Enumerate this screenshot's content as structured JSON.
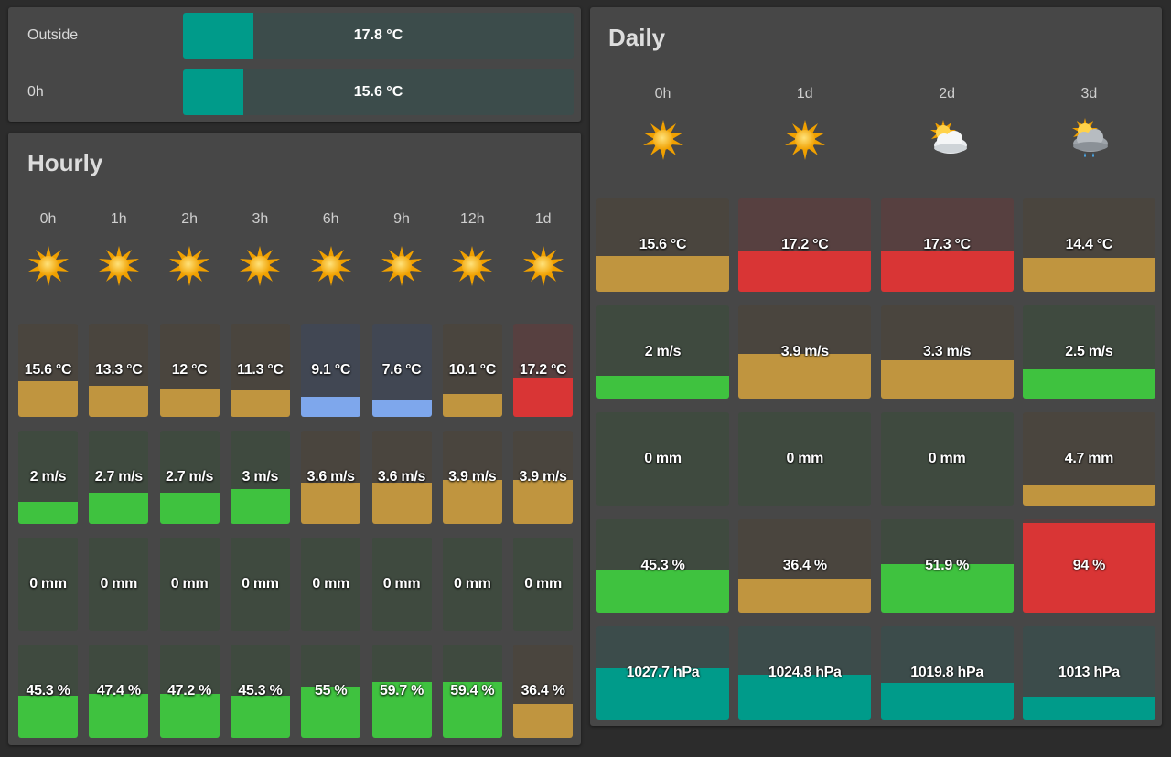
{
  "colors": {
    "teal": "#009b8a",
    "teal_bg": "#3c4c4b",
    "green": "#3fc23f",
    "green_bg": "#3f4a3f",
    "amber": "#c0953f",
    "amber_bg": "#4a453e",
    "red": "#d93535",
    "red_bg": "#574040",
    "blue": "#7ea7ec",
    "blue_bg": "#414753"
  },
  "gauges": [
    {
      "label": "Outside",
      "value": "17.8 °C",
      "fraction": 0.18,
      "color": "teal"
    },
    {
      "label": "0h",
      "value": "15.6 °C",
      "fraction": 0.155,
      "color": "teal"
    }
  ],
  "hourly": {
    "title": "Hourly",
    "columns": [
      {
        "label": "0h",
        "icon": "sun-icon"
      },
      {
        "label": "1h",
        "icon": "sun-icon"
      },
      {
        "label": "2h",
        "icon": "sun-icon"
      },
      {
        "label": "3h",
        "icon": "sun-icon"
      },
      {
        "label": "6h",
        "icon": "sun-icon"
      },
      {
        "label": "9h",
        "icon": "sun-icon"
      },
      {
        "label": "12h",
        "icon": "sun-icon"
      },
      {
        "label": "1d",
        "icon": "sun-icon"
      }
    ],
    "rows": [
      {
        "name": "temperature",
        "cells": [
          {
            "value": "15.6 °C",
            "fraction": 0.38,
            "color": "amber"
          },
          {
            "value": "13.3 °C",
            "fraction": 0.33,
            "color": "amber"
          },
          {
            "value": "12 °C",
            "fraction": 0.29,
            "color": "amber"
          },
          {
            "value": "11.3 °C",
            "fraction": 0.28,
            "color": "amber"
          },
          {
            "value": "9.1 °C",
            "fraction": 0.22,
            "color": "blue"
          },
          {
            "value": "7.6 °C",
            "fraction": 0.18,
            "color": "blue"
          },
          {
            "value": "10.1 °C",
            "fraction": 0.25,
            "color": "amber"
          },
          {
            "value": "17.2 °C",
            "fraction": 0.42,
            "color": "red"
          }
        ]
      },
      {
        "name": "wind",
        "cells": [
          {
            "value": "2 m/s",
            "fraction": 0.24,
            "color": "green"
          },
          {
            "value": "2.7 m/s",
            "fraction": 0.33,
            "color": "green"
          },
          {
            "value": "2.7 m/s",
            "fraction": 0.33,
            "color": "green"
          },
          {
            "value": "3 m/s",
            "fraction": 0.37,
            "color": "green"
          },
          {
            "value": "3.6 m/s",
            "fraction": 0.44,
            "color": "amber"
          },
          {
            "value": "3.6 m/s",
            "fraction": 0.44,
            "color": "amber"
          },
          {
            "value": "3.9 m/s",
            "fraction": 0.47,
            "color": "amber"
          },
          {
            "value": "3.9 m/s",
            "fraction": 0.47,
            "color": "amber"
          }
        ]
      },
      {
        "name": "precipitation",
        "cells": [
          {
            "value": "0 mm",
            "fraction": 0,
            "color": "green"
          },
          {
            "value": "0 mm",
            "fraction": 0,
            "color": "green"
          },
          {
            "value": "0 mm",
            "fraction": 0,
            "color": "green"
          },
          {
            "value": "0 mm",
            "fraction": 0,
            "color": "green"
          },
          {
            "value": "0 mm",
            "fraction": 0,
            "color": "green"
          },
          {
            "value": "0 mm",
            "fraction": 0,
            "color": "green"
          },
          {
            "value": "0 mm",
            "fraction": 0,
            "color": "green"
          },
          {
            "value": "0 mm",
            "fraction": 0,
            "color": "green"
          }
        ]
      },
      {
        "name": "humidity",
        "cells": [
          {
            "value": "45.3 %",
            "fraction": 0.45,
            "color": "green"
          },
          {
            "value": "47.4 %",
            "fraction": 0.47,
            "color": "green"
          },
          {
            "value": "47.2 %",
            "fraction": 0.47,
            "color": "green"
          },
          {
            "value": "45.3 %",
            "fraction": 0.45,
            "color": "green"
          },
          {
            "value": "55 %",
            "fraction": 0.55,
            "color": "green"
          },
          {
            "value": "59.7 %",
            "fraction": 0.6,
            "color": "green"
          },
          {
            "value": "59.4 %",
            "fraction": 0.6,
            "color": "green"
          },
          {
            "value": "36.4 %",
            "fraction": 0.36,
            "color": "amber"
          }
        ]
      }
    ]
  },
  "daily": {
    "title": "Daily",
    "columns": [
      {
        "label": "0h",
        "icon": "sun-icon"
      },
      {
        "label": "1d",
        "icon": "sun-icon"
      },
      {
        "label": "2d",
        "icon": "partly-cloudy-icon"
      },
      {
        "label": "3d",
        "icon": "rain-cloud-icon"
      }
    ],
    "rows": [
      {
        "name": "temperature",
        "cells": [
          {
            "value": "15.6 °C",
            "fraction": 0.38,
            "color": "amber"
          },
          {
            "value": "17.2 °C",
            "fraction": 0.43,
            "color": "red"
          },
          {
            "value": "17.3 °C",
            "fraction": 0.43,
            "color": "red"
          },
          {
            "value": "14.4 °C",
            "fraction": 0.36,
            "color": "amber"
          }
        ]
      },
      {
        "name": "wind",
        "cells": [
          {
            "value": "2 m/s",
            "fraction": 0.25,
            "color": "green"
          },
          {
            "value": "3.9 m/s",
            "fraction": 0.48,
            "color": "amber"
          },
          {
            "value": "3.3 m/s",
            "fraction": 0.41,
            "color": "amber"
          },
          {
            "value": "2.5 m/s",
            "fraction": 0.31,
            "color": "green"
          }
        ]
      },
      {
        "name": "precipitation",
        "cells": [
          {
            "value": "0 mm",
            "fraction": 0,
            "color": "green"
          },
          {
            "value": "0 mm",
            "fraction": 0,
            "color": "green"
          },
          {
            "value": "0 mm",
            "fraction": 0,
            "color": "green"
          },
          {
            "value": "4.7 mm",
            "fraction": 0.22,
            "color": "amber"
          }
        ]
      },
      {
        "name": "humidity",
        "cells": [
          {
            "value": "45.3 %",
            "fraction": 0.45,
            "color": "green"
          },
          {
            "value": "36.4 %",
            "fraction": 0.36,
            "color": "amber"
          },
          {
            "value": "51.9 %",
            "fraction": 0.52,
            "color": "green"
          },
          {
            "value": "94 %",
            "fraction": 0.96,
            "color": "red"
          }
        ]
      },
      {
        "name": "pressure",
        "cells": [
          {
            "value": "1027.7 hPa",
            "fraction": 0.55,
            "color": "teal"
          },
          {
            "value": "1024.8 hPa",
            "fraction": 0.48,
            "color": "teal"
          },
          {
            "value": "1019.8 hPa",
            "fraction": 0.39,
            "color": "teal"
          },
          {
            "value": "1013 hPa",
            "fraction": 0.25,
            "color": "teal"
          }
        ]
      }
    ]
  }
}
